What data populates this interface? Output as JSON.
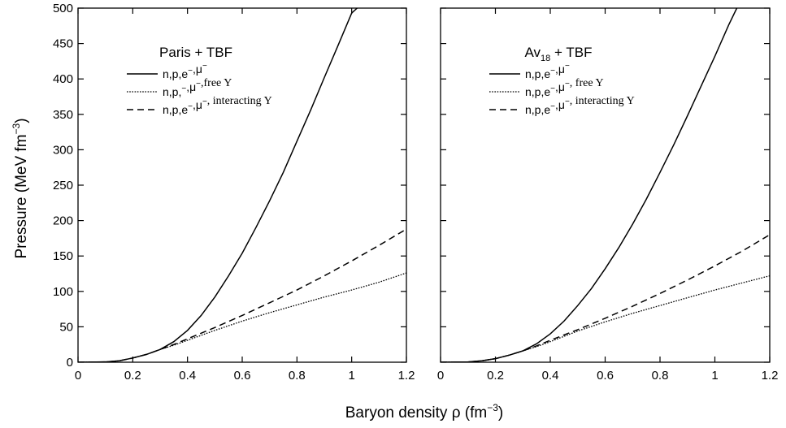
{
  "chart_data": [
    {
      "type": "line",
      "title": "Paris + TBF",
      "ylabel": "Pressure (MeV fm",
      "ylabel_sup": "−3",
      "ylabel_close": ")",
      "xlim": [
        0,
        1.2
      ],
      "ylim": [
        0,
        500
      ],
      "xticks": [
        0,
        0.2,
        0.4,
        0.6,
        0.8,
        1.0,
        1.2
      ],
      "xtick_labels": [
        "0",
        "0.2",
        "0.4",
        "0.6",
        "0.8",
        "1",
        "1.2"
      ],
      "yticks": [
        0,
        50,
        100,
        150,
        200,
        250,
        300,
        350,
        400,
        450,
        500
      ],
      "ytick_labels": [
        "0",
        "50",
        "100",
        "150",
        "200",
        "250",
        "300",
        "350",
        "400",
        "450",
        "500"
      ],
      "grid": false,
      "legend_position": "upper-left",
      "series": [
        {
          "legend": [
            {
              "text": "n,p,e",
              "sup": "−",
              "serif": false
            },
            {
              "text": ",μ",
              "sup": "−",
              "serif": false
            }
          ],
          "style": "solid",
          "x": [
            0.0,
            0.1,
            0.15,
            0.2,
            0.25,
            0.3,
            0.35,
            0.4,
            0.45,
            0.5,
            0.55,
            0.6,
            0.65,
            0.7,
            0.75,
            0.8,
            0.85,
            0.9,
            0.95,
            1.0,
            1.02
          ],
          "y": [
            0,
            0.5,
            2,
            6,
            11,
            18,
            29,
            45,
            66,
            92,
            122,
            154,
            190,
            228,
            268,
            312,
            356,
            402,
            447,
            493,
            500
          ]
        },
        {
          "legend": [
            {
              "text": "n,p,",
              "sup": "−",
              "serif": false
            },
            {
              "text": ",μ",
              "sup": "−",
              "serif": false
            },
            {
              "text": ",free Y",
              "sup": "",
              "serif": true
            }
          ],
          "style": "dotted",
          "x": [
            0.0,
            0.1,
            0.15,
            0.2,
            0.25,
            0.3,
            0.35,
            0.4,
            0.5,
            0.6,
            0.7,
            0.8,
            0.9,
            1.0,
            1.1,
            1.2
          ],
          "y": [
            0,
            0.5,
            2,
            6,
            11,
            18,
            24,
            31,
            45,
            58,
            70,
            81,
            92,
            102,
            113,
            126
          ]
        },
        {
          "legend": [
            {
              "text": "n,p,e",
              "sup": "−",
              "serif": false
            },
            {
              "text": ",μ",
              "sup": "−",
              "serif": false
            },
            {
              "text": ", interacting Y",
              "sup": "",
              "serif": true
            }
          ],
          "style": "dashed",
          "x": [
            0.0,
            0.1,
            0.15,
            0.2,
            0.25,
            0.3,
            0.35,
            0.4,
            0.5,
            0.6,
            0.7,
            0.8,
            0.9,
            1.0,
            1.1,
            1.2
          ],
          "y": [
            0,
            0.5,
            2,
            6,
            11,
            18,
            25,
            33,
            49,
            66,
            84,
            102,
            122,
            143,
            165,
            188
          ]
        }
      ]
    },
    {
      "type": "line",
      "title": "Av",
      "title_sub": "18",
      "title_tail": " + TBF",
      "xlim": [
        0,
        1.2
      ],
      "ylim": [
        0,
        500
      ],
      "xticks": [
        0,
        0.2,
        0.4,
        0.6,
        0.8,
        1.0,
        1.2
      ],
      "xtick_labels": [
        "0",
        "0.2",
        "0.4",
        "0.6",
        "0.8",
        "1",
        "1.2"
      ],
      "yticks": [
        0,
        50,
        100,
        150,
        200,
        250,
        300,
        350,
        400,
        450,
        500
      ],
      "ytick_labels": [],
      "grid": false,
      "legend_position": "upper-left",
      "series": [
        {
          "legend": [
            {
              "text": "n,p,e",
              "sup": "−",
              "serif": false
            },
            {
              "text": ",μ",
              "sup": "−",
              "serif": false
            }
          ],
          "style": "solid",
          "x": [
            0.0,
            0.1,
            0.15,
            0.2,
            0.25,
            0.3,
            0.35,
            0.4,
            0.45,
            0.5,
            0.55,
            0.6,
            0.65,
            0.7,
            0.75,
            0.8,
            0.85,
            0.9,
            0.95,
            1.0,
            1.05,
            1.08
          ],
          "y": [
            0,
            0.5,
            2,
            5,
            10,
            16,
            26,
            40,
            58,
            80,
            104,
            132,
            162,
            195,
            230,
            268,
            307,
            348,
            390,
            432,
            476,
            500
          ]
        },
        {
          "legend": [
            {
              "text": "n,p,e",
              "sup": "−",
              "serif": false
            },
            {
              "text": ",μ",
              "sup": "−",
              "serif": false
            },
            {
              "text": ", free Y",
              "sup": "",
              "serif": true
            }
          ],
          "style": "dotted",
          "x": [
            0.0,
            0.1,
            0.15,
            0.2,
            0.25,
            0.3,
            0.35,
            0.4,
            0.5,
            0.6,
            0.7,
            0.8,
            0.9,
            1.0,
            1.1,
            1.2
          ],
          "y": [
            0,
            0.5,
            2,
            5,
            10,
            16,
            22,
            29,
            44,
            57,
            69,
            80,
            91,
            102,
            112,
            122
          ]
        },
        {
          "legend": [
            {
              "text": "n,p,e",
              "sup": "−",
              "serif": false
            },
            {
              "text": ",μ",
              "sup": "−",
              "serif": false
            },
            {
              "text": ", interacting Y",
              "sup": "",
              "serif": true
            }
          ],
          "style": "dashed",
          "x": [
            0.0,
            0.1,
            0.15,
            0.2,
            0.25,
            0.3,
            0.35,
            0.4,
            0.5,
            0.6,
            0.7,
            0.8,
            0.9,
            1.0,
            1.1,
            1.2
          ],
          "y": [
            0,
            0.5,
            2,
            5,
            10,
            16,
            23,
            31,
            46,
            62,
            79,
            97,
            116,
            136,
            157,
            180
          ]
        }
      ]
    }
  ],
  "xlabel": "Baryon density ρ (fm",
  "xlabel_sup": "−3",
  "xlabel_close": ")"
}
